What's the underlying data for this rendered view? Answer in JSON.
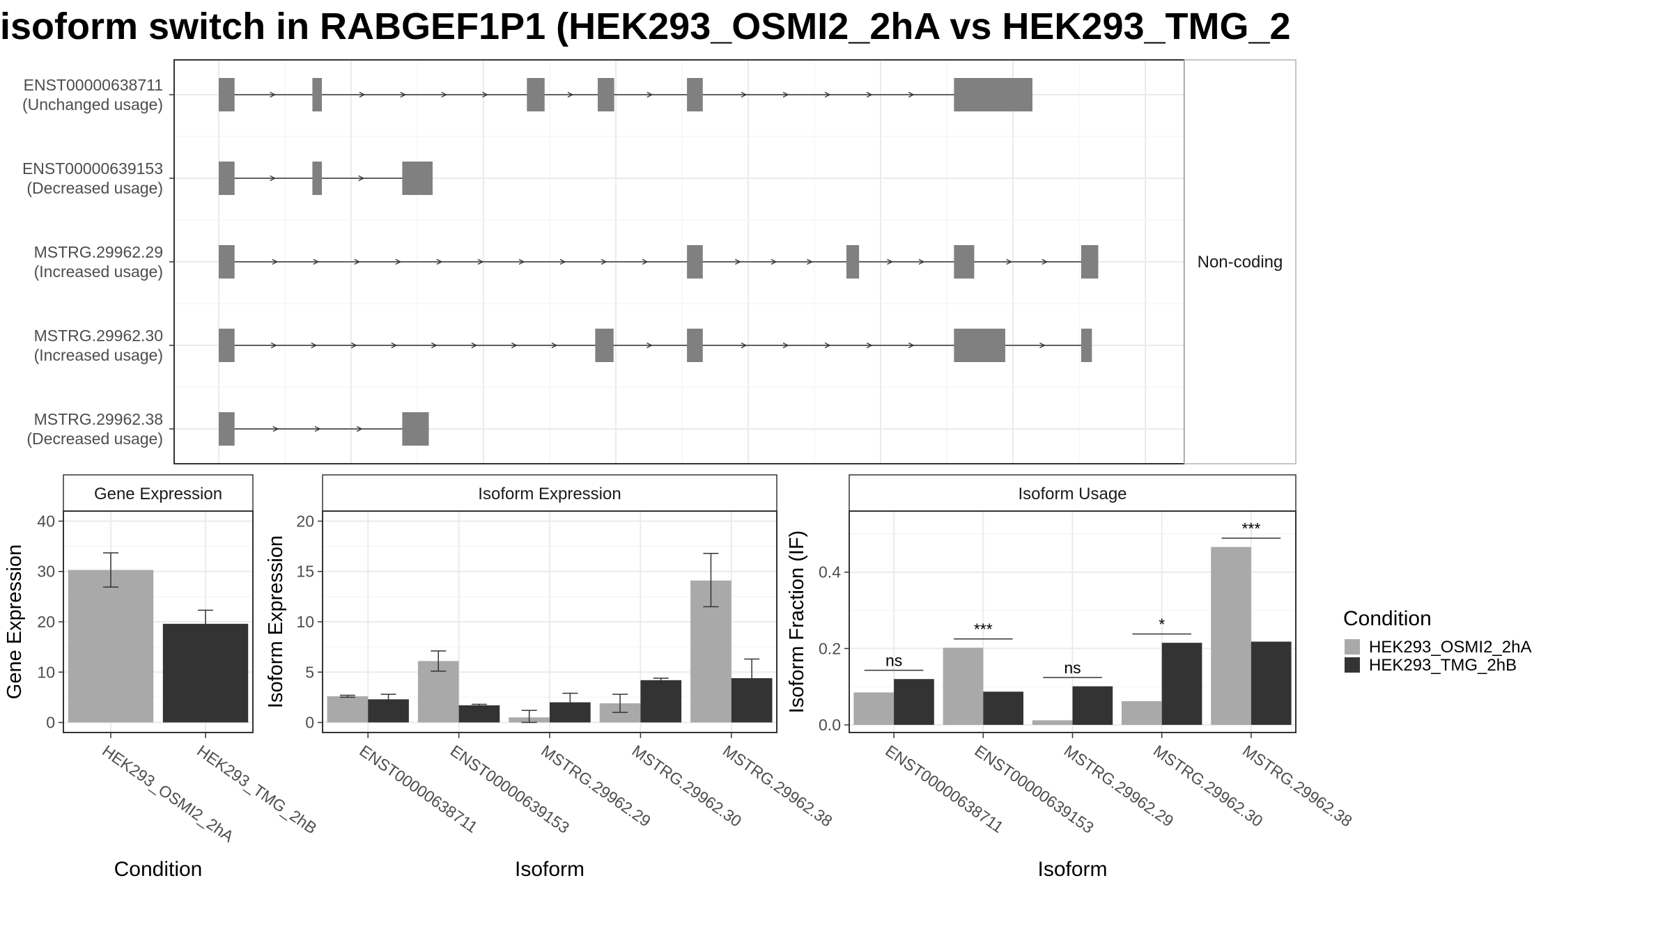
{
  "title": "isoform switch in RABGEF1P1 (HEK293_OSMI2_2hA vs HEK293_TMG_2",
  "colors": {
    "condA": "#a9a9a9",
    "condB": "#333333",
    "exon": "#808080",
    "grid": "#ebebeb",
    "panel_border": "#333333",
    "strip_fill": "#ffffff"
  },
  "structure": {
    "facet_label": "Non-coding",
    "coord_range": [
      0,
      1460
    ],
    "transcripts": [
      {
        "id": "ENST00000638711",
        "usage": "(Unchanged usage)",
        "exons": [
          [
            0,
            25
          ],
          [
            148,
            163
          ],
          [
            487,
            515
          ],
          [
            599,
            625
          ],
          [
            740,
            765
          ],
          [
            1162,
            1286
          ]
        ]
      },
      {
        "id": "ENST00000639153",
        "usage": "(Decreased usage)",
        "exons": [
          [
            0,
            25
          ],
          [
            148,
            163
          ],
          [
            290,
            338
          ]
        ]
      },
      {
        "id": "MSTRG.29962.29",
        "usage": "(Increased usage)",
        "exons": [
          [
            0,
            25
          ],
          [
            740,
            765
          ],
          [
            992,
            1012
          ],
          [
            1162,
            1194
          ],
          [
            1363,
            1390
          ]
        ]
      },
      {
        "id": "MSTRG.29962.30",
        "usage": "(Increased usage)",
        "exons": [
          [
            0,
            25
          ],
          [
            595,
            624
          ],
          [
            740,
            765
          ],
          [
            1162,
            1243
          ],
          [
            1363,
            1380
          ]
        ]
      },
      {
        "id": "MSTRG.29962.38",
        "usage": "(Decreased usage)",
        "exons": [
          [
            0,
            25
          ],
          [
            290,
            332
          ]
        ]
      }
    ]
  },
  "legend": {
    "title": "Condition",
    "items": [
      "HEK293_OSMI2_2hA",
      "HEK293_TMG_2hB"
    ]
  },
  "chart_data": [
    {
      "type": "bar",
      "title": "Gene Expression",
      "xlabel": "Condition",
      "ylabel": "Gene Expression",
      "ylim": [
        -2,
        42
      ],
      "yticks": [
        0,
        10,
        20,
        30,
        40
      ],
      "categories": [
        "HEK293_OSMI2_2hA",
        "HEK293_TMG_2hB"
      ],
      "values": [
        30.3,
        19.6
      ],
      "errors": [
        [
          26.9,
          33.7
        ],
        [
          17.0,
          22.3
        ]
      ]
    },
    {
      "type": "bar",
      "title": "Isoform Expression",
      "xlabel": "Isoform",
      "ylabel": "Isoform Expression",
      "ylim": [
        -1,
        21
      ],
      "yticks": [
        0,
        5,
        10,
        15,
        20
      ],
      "categories": [
        "ENST00000638711",
        "ENST00000639153",
        "MSTRG.29962.29",
        "MSTRG.29962.30",
        "MSTRG.29962.38"
      ],
      "series": [
        {
          "name": "HEK293_OSMI2_2hA",
          "values": [
            2.6,
            6.1,
            0.5,
            1.9,
            14.1
          ],
          "errors": [
            [
              2.5,
              2.7
            ],
            [
              5.1,
              7.1
            ],
            [
              0.0,
              1.2
            ],
            [
              1.0,
              2.8
            ],
            [
              11.5,
              16.8
            ]
          ]
        },
        {
          "name": "HEK293_TMG_2hB",
          "values": [
            2.3,
            1.7,
            2.0,
            4.2,
            4.4
          ],
          "errors": [
            [
              1.9,
              2.8
            ],
            [
              1.5,
              1.8
            ],
            [
              1.1,
              2.9
            ],
            [
              3.9,
              4.4
            ],
            [
              2.4,
              6.3
            ]
          ]
        }
      ]
    },
    {
      "type": "bar",
      "title": "Isoform Usage",
      "xlabel": "Isoform",
      "ylabel": "Isoform Fraction (IF)",
      "ylim": [
        -0.02,
        0.56
      ],
      "yticks": [
        0.0,
        0.2,
        0.4
      ],
      "ytick_labels": [
        "0.0",
        "0.2",
        "0.4"
      ],
      "categories": [
        "ENST00000638711",
        "ENST00000639153",
        "MSTRG.29962.29",
        "MSTRG.29962.30",
        "MSTRG.29962.38"
      ],
      "series": [
        {
          "name": "HEK293_OSMI2_2hA",
          "values": [
            0.085,
            0.202,
            0.012,
            0.062,
            0.466
          ]
        },
        {
          "name": "HEK293_TMG_2hB",
          "values": [
            0.12,
            0.087,
            0.101,
            0.215,
            0.218
          ]
        }
      ],
      "significance": [
        "ns",
        "***",
        "ns",
        "*",
        "***"
      ],
      "significance_y": [
        0.143,
        0.225,
        0.124,
        0.238,
        0.489
      ]
    }
  ]
}
